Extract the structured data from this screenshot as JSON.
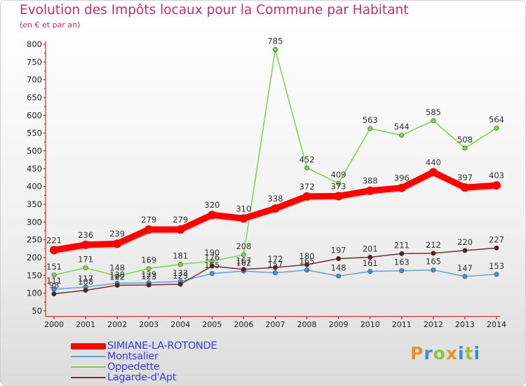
{
  "title": "Evolution des Impôts locaux pour la Commune par Habitant",
  "subtitle": "(en € et par an)",
  "logo_text": "Proxiti",
  "colors": {
    "title": "#c0306b",
    "axis": "#cc0000",
    "legend_text": "#3b3bd0",
    "logo": [
      "#e8902c",
      "#3a8ad6",
      "#8ac53f",
      "#e8902c",
      "#3a8ad6",
      "#8ac53f",
      "#3a8ad6"
    ]
  },
  "chart_data": {
    "type": "line",
    "title": "Evolution des Impôts locaux pour la Commune par Habitant",
    "subtitle": "(en € et par an)",
    "xlabel": "",
    "ylabel": "",
    "ylim": [
      50,
      800
    ],
    "yticks": [
      50,
      100,
      150,
      200,
      250,
      300,
      350,
      400,
      450,
      500,
      550,
      600,
      650,
      700,
      750,
      800
    ],
    "categories": [
      "2000",
      "2001",
      "2002",
      "2003",
      "2004",
      "2005",
      "2006",
      "2007",
      "2008",
      "2009",
      "2010",
      "2011",
      "2012",
      "2013",
      "2014"
    ],
    "grid": false,
    "legend": "bottom-left",
    "series": [
      {
        "name": "Oppedette",
        "color": "#7ed348",
        "point_color": "#7ed348",
        "values": [
          151,
          171,
          148,
          169,
          181,
          190,
          208,
          785,
          452,
          409,
          563,
          544,
          585,
          508,
          564
        ]
      },
      {
        "name": "Montsalier",
        "color": "#5fa2d8",
        "point_color": "#4a90d0",
        "values": [
          111,
          117,
          128,
          129,
          133,
          155,
          162,
          157,
          165,
          148,
          161,
          163,
          165,
          147,
          153
        ]
      },
      {
        "name": "Lagarde-d'Apt",
        "color": "#7a2b34",
        "point_color": "#5e1a22",
        "values": [
          98,
          108,
          122,
          123,
          125,
          176,
          167,
          172,
          180,
          197,
          201,
          211,
          212,
          220,
          227
        ]
      },
      {
        "name": "SIMIANE-LA-ROTONDE",
        "color": "#ff0000",
        "point_color": "#ff0000",
        "values": [
          221,
          236,
          239,
          279,
          279,
          320,
          310,
          338,
          372,
          373,
          388,
          396,
          440,
          397,
          403
        ]
      }
    ]
  },
  "legend": [
    {
      "name": "SIMIANE-LA-ROTONDE",
      "color": "#ff0000",
      "weight": "thick"
    },
    {
      "name": "Montsalier",
      "color": "#5fa2d8",
      "weight": "thin"
    },
    {
      "name": "Oppedette",
      "color": "#7ed348",
      "weight": "thin"
    },
    {
      "name": "Lagarde-d'Apt",
      "color": "#7a2b34",
      "weight": "thin"
    }
  ]
}
